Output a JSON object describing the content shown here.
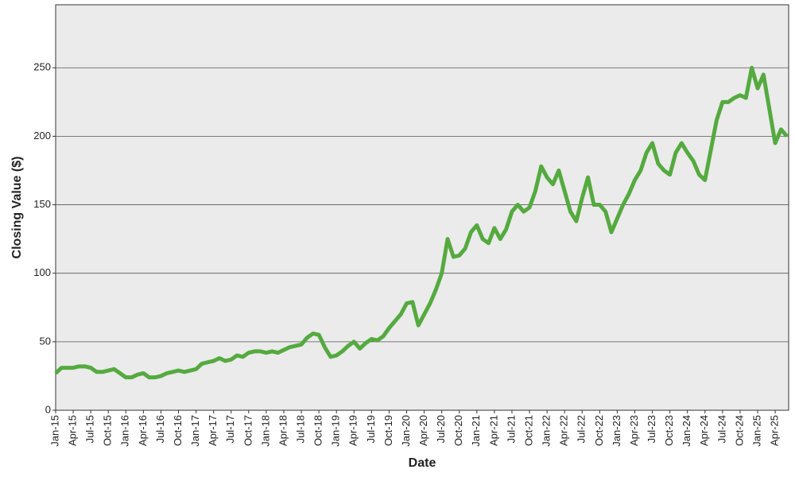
{
  "chart_data": {
    "type": "line",
    "x_label": "Date",
    "y_label": "Closing Value ($)",
    "categories": [
      "Jan-15",
      null,
      null,
      "Apr-15",
      null,
      null,
      "Jul-15",
      null,
      null,
      "Oct-15",
      null,
      null,
      "Jan-16",
      null,
      null,
      "Apr-16",
      null,
      null,
      "Jul-16",
      null,
      null,
      "Oct-16",
      null,
      null,
      "Jan-17",
      null,
      null,
      "Apr-17",
      null,
      null,
      "Jul-17",
      null,
      null,
      "Oct-17",
      null,
      null,
      "Jan-18",
      null,
      null,
      "Apr-18",
      null,
      null,
      "Jul-18",
      null,
      null,
      "Oct-18",
      null,
      null,
      "Jan-19",
      null,
      null,
      "Apr-19",
      null,
      null,
      "Jul-19",
      null,
      null,
      "Oct-19",
      null,
      null,
      "Jan-20",
      null,
      null,
      "Apr-20",
      null,
      null,
      "Jul-20",
      null,
      null,
      "Oct-20",
      null,
      null,
      "Jan-21",
      null,
      null,
      "Apr-21",
      null,
      null,
      "Jul-21",
      null,
      null,
      "Oct-21",
      null,
      null,
      "Jan-22",
      null,
      null,
      "Apr-22",
      null,
      null,
      "Jul-22",
      null,
      null,
      "Oct-22",
      null,
      null,
      "Jan-23",
      null,
      null,
      "Apr-23",
      null,
      null,
      "Jul-23",
      null,
      null,
      "Oct-23",
      null,
      null,
      "Jan-24",
      null,
      null,
      "Apr-24",
      null,
      null,
      "Jul-24",
      null,
      null,
      "Oct-24",
      null,
      null,
      "Jan-25",
      null,
      null,
      "Apr-25",
      null,
      null
    ],
    "series": [
      {
        "name": "Closing Value",
        "color": "#55aa3f",
        "values": [
          27,
          31,
          31,
          31,
          32,
          32,
          31,
          28,
          28,
          29,
          30,
          27,
          24,
          24,
          26,
          27,
          24,
          24,
          25,
          27,
          28,
          29,
          28,
          29,
          30,
          34,
          35,
          36,
          38,
          36,
          37,
          40,
          39,
          42,
          43,
          43,
          42,
          43,
          42,
          44,
          46,
          47,
          48,
          53,
          56,
          55,
          46,
          39,
          40,
          43,
          47,
          50,
          45,
          49,
          52,
          51,
          54,
          60,
          65,
          70,
          78,
          79,
          62,
          70,
          78,
          88,
          100,
          125,
          112,
          113,
          118,
          130,
          135,
          125,
          122,
          133,
          125,
          132,
          145,
          150,
          145,
          148,
          160,
          178,
          170,
          165,
          175,
          160,
          145,
          138,
          155,
          170,
          150,
          150,
          145,
          130,
          140,
          150,
          158,
          168,
          175,
          188,
          195,
          180,
          175,
          172,
          188,
          195,
          188,
          182,
          172,
          168,
          190,
          212,
          225,
          225,
          228,
          230,
          228,
          250,
          235,
          245,
          220,
          195,
          205,
          200
        ]
      }
    ],
    "ylim": [
      0,
      296
    ],
    "yticks": [
      0,
      50,
      100,
      150,
      200,
      250
    ],
    "grid": true
  }
}
